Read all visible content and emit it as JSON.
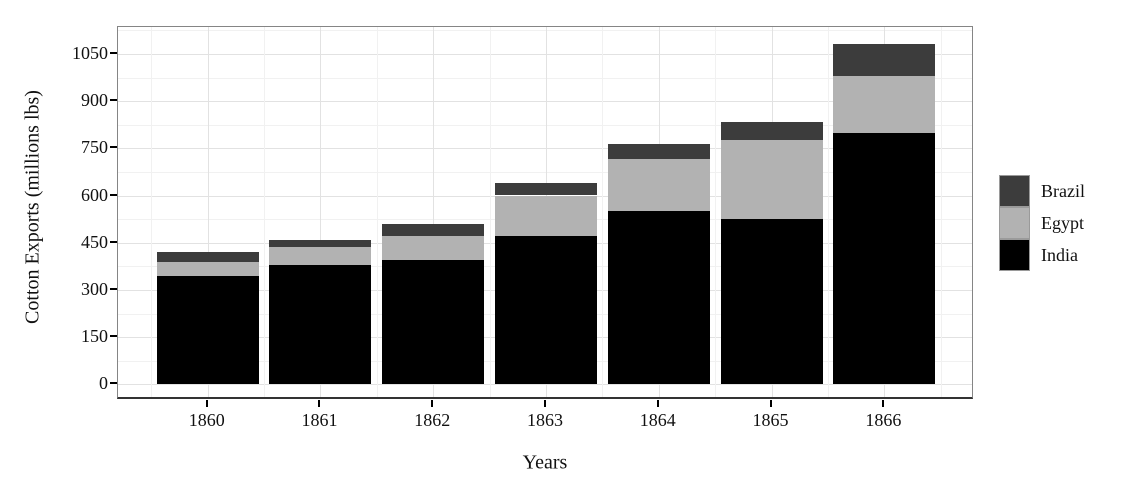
{
  "chart_data": {
    "type": "bar",
    "stacked": true,
    "title": "",
    "xlabel": "Years",
    "ylabel": "Cotton Exports (millions lbs)",
    "categories": [
      "1860",
      "1861",
      "1862",
      "1863",
      "1864",
      "1865",
      "1866"
    ],
    "series": [
      {
        "name": "India",
        "color": "#000000",
        "values": [
          345,
          380,
          395,
          470,
          550,
          525,
          800
        ]
      },
      {
        "name": "Egypt",
        "color": "#b2b2b2",
        "values": [
          45,
          55,
          75,
          130,
          165,
          250,
          180
        ]
      },
      {
        "name": "Brazil",
        "color": "#3c3c3c",
        "values": [
          30,
          25,
          40,
          40,
          50,
          60,
          100
        ]
      }
    ],
    "stack_order_bottom_to_top": [
      "India",
      "Egypt",
      "Brazil"
    ],
    "totals": [
      420,
      460,
      510,
      640,
      765,
      835,
      1080
    ],
    "y_ticks": [
      0,
      150,
      300,
      450,
      600,
      750,
      900,
      1050
    ],
    "y_minor_step": 75,
    "ylim": [
      0,
      1140
    ],
    "grid": true,
    "legend": {
      "position": "right",
      "entries": [
        "Brazil",
        "Egypt",
        "India"
      ]
    },
    "colors": {
      "grid_major": "#e2e2e2",
      "grid_minor": "#f1f1f1",
      "panel_border": "#858585",
      "axis_line": "#333333",
      "text": "#111111"
    }
  }
}
